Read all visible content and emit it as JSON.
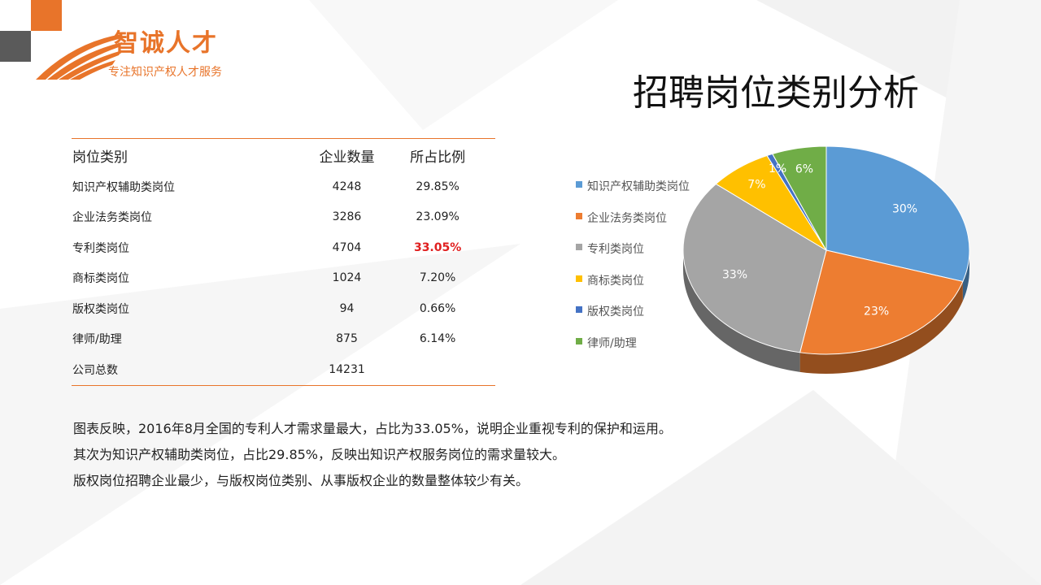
{
  "logo": {
    "name": "智诚人才",
    "slogan": "专注知识产权人才服务"
  },
  "title": "招聘岗位类别分析",
  "table": {
    "headers": [
      "岗位类别",
      "企业数量",
      "所占比例"
    ],
    "rows": [
      {
        "category": "知识产权辅助类岗位",
        "count": "4248",
        "ratio": "29.85%"
      },
      {
        "category": "企业法务类岗位",
        "count": "3286",
        "ratio": "23.09%"
      },
      {
        "category": "专利类岗位",
        "count": "4704",
        "ratio": "33.05%",
        "highlight": true
      },
      {
        "category": "商标类岗位",
        "count": "1024",
        "ratio": "7.20%"
      },
      {
        "category": "版权类岗位",
        "count": "94",
        "ratio": "0.66%"
      },
      {
        "category": "律师/助理",
        "count": "875",
        "ratio": "6.14%"
      },
      {
        "category": "公司总数",
        "count": "14231",
        "ratio": ""
      }
    ]
  },
  "summary": [
    "图表反映，2016年8月全国的专利人才需求量最大，占比为33.05%，说明企业重视专利的保护和运用。",
    "其次为知识产权辅助类岗位，占比29.85%，反映出知识产权服务岗位的需求量较大。",
    "版权岗位招聘企业最少，与版权岗位类别、从事版权企业的数量整体较少有关。"
  ],
  "chart_data": {
    "type": "pie",
    "categories": [
      "知识产权辅助类岗位",
      "企业法务类岗位",
      "专利类岗位",
      "商标类岗位",
      "版权类岗位",
      "律师/助理"
    ],
    "values": [
      29.85,
      23.09,
      33.05,
      7.2,
      0.66,
      6.14
    ],
    "labels": [
      "30%",
      "23%",
      "33%",
      "7%",
      "1%",
      "6%"
    ],
    "colors": [
      "#5b9bd5",
      "#ed7d31",
      "#a5a5a5",
      "#ffc000",
      "#4472c4",
      "#70ad47"
    ],
    "legend": "left"
  }
}
